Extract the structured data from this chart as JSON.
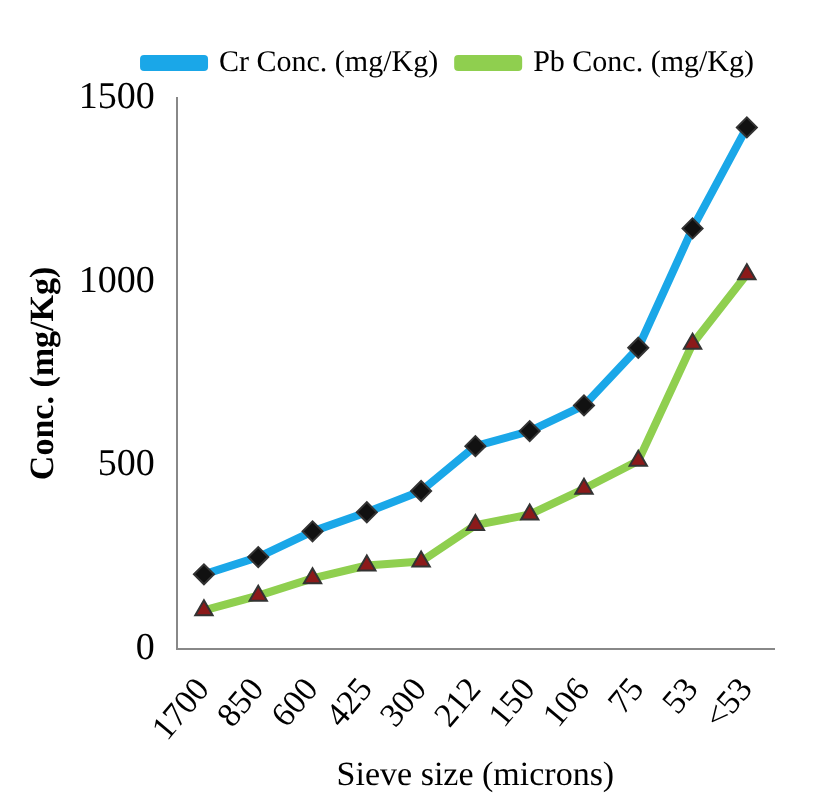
{
  "chart_data": {
    "type": "line",
    "xlabel": "Sieve size (microns)",
    "ylabel": "Conc. (mg/Kg)",
    "categories": [
      "1700",
      "850",
      "600",
      "425",
      "300",
      "212",
      "150",
      "106",
      "75",
      "53",
      "<53"
    ],
    "series": [
      {
        "name": "Cr Conc. (mg/Kg)",
        "color": "#1aa7e8",
        "marker": "diamond",
        "values": [
          203,
          250,
          320,
          372,
          430,
          552,
          593,
          663,
          820,
          1145,
          1420
        ]
      },
      {
        "name": "Pb Conc. (mg/Kg)",
        "color": "#8fcf4f",
        "marker": "triangle",
        "values": [
          105,
          145,
          192,
          227,
          238,
          337,
          366,
          436,
          512,
          831,
          1020
        ]
      }
    ],
    "ylim": [
      0,
      1500
    ],
    "yticks": [
      0,
      500,
      1000,
      1500
    ],
    "grid": false,
    "legend": "top"
  }
}
